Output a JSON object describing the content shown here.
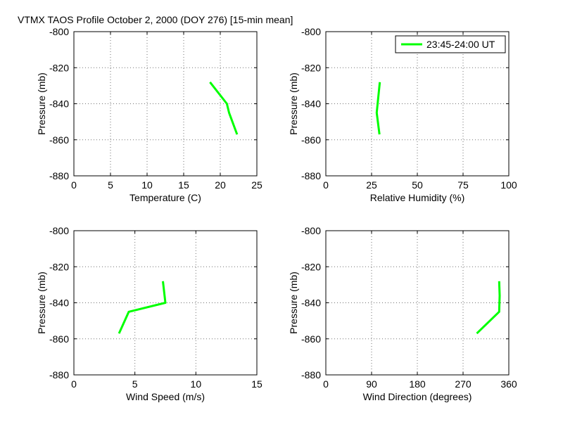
{
  "figure": {
    "title": "VTMX TAOS Profile   October 2, 2000 (DOY 276) [15-min mean]"
  },
  "legend": {
    "label": "23:45-24:00 UT",
    "color": "#00ff00"
  },
  "chart_data": [
    {
      "type": "line",
      "xlabel": "Temperature (C)",
      "ylabel": "Pressure (mb)",
      "xlim": [
        0,
        25
      ],
      "ylim": [
        -880,
        -800
      ],
      "xticks": [
        0,
        5,
        10,
        15,
        20,
        25
      ],
      "yticks": [
        -800,
        -820,
        -840,
        -860,
        -880
      ],
      "grid": true,
      "series": [
        {
          "color": "#00ff00",
          "x": [
            18.6,
            20.9,
            21.2,
            22.3
          ],
          "y": [
            -828,
            -840,
            -845,
            -857
          ]
        }
      ]
    },
    {
      "type": "line",
      "xlabel": "Relative Humidity (%)",
      "ylabel": "Pressure (mb)",
      "xlim": [
        0,
        100
      ],
      "ylim": [
        -880,
        -800
      ],
      "xticks": [
        0,
        25,
        50,
        75,
        100
      ],
      "yticks": [
        -800,
        -820,
        -840,
        -860,
        -880
      ],
      "grid": true,
      "legend": "top-right",
      "series": [
        {
          "name": "23:45-24:00 UT",
          "color": "#00ff00",
          "x": [
            29.5,
            28.5,
            27.8,
            29.3
          ],
          "y": [
            -828,
            -838,
            -845,
            -857
          ]
        }
      ]
    },
    {
      "type": "line",
      "xlabel": "Wind Speed (m/s)",
      "ylabel": "Pressure (mb)",
      "xlim": [
        0,
        15
      ],
      "ylim": [
        -880,
        -800
      ],
      "xticks": [
        0,
        5,
        10,
        15
      ],
      "yticks": [
        -800,
        -820,
        -840,
        -860,
        -880
      ],
      "grid": true,
      "series": [
        {
          "color": "#00ff00",
          "x": [
            7.3,
            7.5,
            4.5,
            3.7
          ],
          "y": [
            -828,
            -840,
            -845,
            -857
          ]
        }
      ]
    },
    {
      "type": "line",
      "xlabel": "Wind Direction (degrees)",
      "ylabel": "Pressure (mb)",
      "xlim": [
        0,
        360
      ],
      "ylim": [
        -880,
        -800
      ],
      "xticks": [
        0,
        90,
        180,
        270,
        360
      ],
      "yticks": [
        -800,
        -820,
        -840,
        -860,
        -880
      ],
      "grid": true,
      "series": [
        {
          "color": "#00ff00",
          "x": [
            341,
            342,
            341,
            297
          ],
          "y": [
            -828,
            -836,
            -845,
            -857
          ]
        }
      ]
    }
  ]
}
